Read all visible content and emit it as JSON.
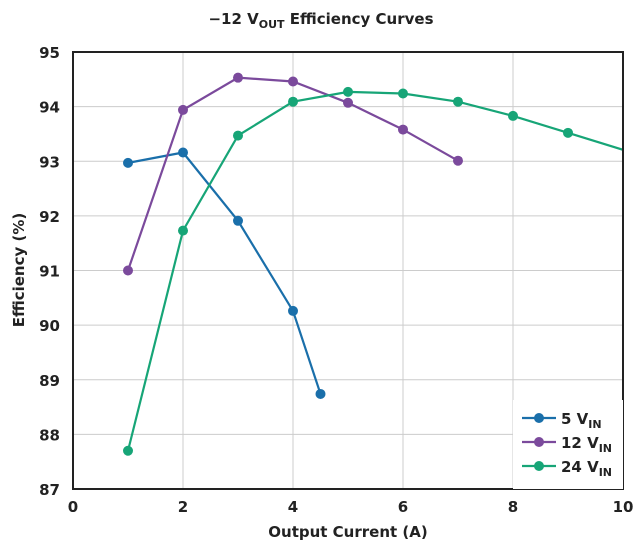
{
  "chart_data": {
    "type": "line",
    "title": {
      "main": "−12 V",
      "sub": "OUT",
      "rest": " Efficiency Curves"
    },
    "xlabel": "Output Current (A)",
    "ylabel": "Efficiency (%)",
    "xlim": [
      0,
      10
    ],
    "ylim": [
      87,
      95
    ],
    "xticks": [
      "0",
      "2",
      "4",
      "6",
      "8",
      "10"
    ],
    "yticks": [
      "87",
      "88",
      "89",
      "90",
      "91",
      "92",
      "93",
      "94",
      "95"
    ],
    "grid": true,
    "legend_position": "bottom-right",
    "series": [
      {
        "name": "5 V",
        "name_sub": "IN",
        "color": "#1a6faa",
        "markers": true,
        "x": [
          1,
          2,
          3,
          4,
          4.5
        ],
        "y": [
          92.97,
          93.16,
          91.91,
          90.26,
          88.74
        ]
      },
      {
        "name": "12 V",
        "name_sub": "IN",
        "color": "#7b4a9c",
        "markers": true,
        "x": [
          1,
          2,
          3,
          4,
          5,
          6,
          7
        ],
        "y": [
          91.0,
          93.94,
          94.53,
          94.46,
          94.07,
          93.58,
          93.01
        ]
      },
      {
        "name": "24 V",
        "name_sub": "IN",
        "color": "#17a577",
        "markers": true,
        "x": [
          1,
          2,
          3,
          4,
          5,
          6,
          7,
          8,
          9,
          10
        ],
        "y": [
          87.7,
          91.73,
          93.47,
          94.09,
          94.27,
          94.24,
          94.09,
          93.83,
          93.52,
          93.21
        ],
        "marker_mask": [
          1,
          1,
          1,
          1,
          1,
          1,
          1,
          1,
          1,
          0
        ]
      }
    ]
  }
}
